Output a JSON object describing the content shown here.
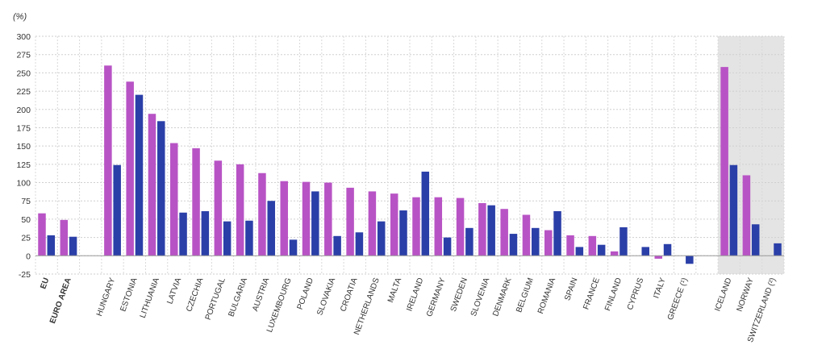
{
  "chart_data": {
    "type": "bar",
    "unit_label": "(%)",
    "ylim": [
      -25,
      300
    ],
    "yticks": [
      -25,
      0,
      25,
      50,
      75,
      100,
      125,
      150,
      175,
      200,
      225,
      250,
      275,
      300
    ],
    "grid": true,
    "legend": "none",
    "bold_categories": [
      "EU",
      "EURO AREA"
    ],
    "shaded_categories": [
      "ICELAND",
      "NORWAY",
      "SWITZERLAND (²)"
    ],
    "colors": {
      "series_1": "#b853c5",
      "series_2": "#2b3fa8",
      "shade": "#e4e4e4"
    },
    "categories": [
      "EU",
      "EURO AREA",
      "",
      "HUNGARY",
      "ESTONIA",
      "LITHUANIA",
      "LATVIA",
      "CZECHIA",
      "PORTUGAL",
      "BULGARIA",
      "AUSTRIA",
      "LUXEMBOURG",
      "POLAND",
      "SLOVAKIA",
      "CROATIA",
      "NETHERLANDS",
      "MALTA",
      "IRELAND",
      "GERMANY",
      "SWEDEN",
      "SLOVENIA",
      "DENMARK",
      "BELGIUM",
      "ROMANIA",
      "SPAIN",
      "FRANCE",
      "FINLAND",
      "CYPRUS",
      "ITALY",
      "GREECE (¹)",
      "",
      "ICELAND",
      "NORWAY",
      "SWITZERLAND (²)"
    ],
    "series": [
      {
        "values": [
          58,
          49,
          null,
          260,
          238,
          194,
          154,
          147,
          130,
          125,
          113,
          102,
          101,
          100,
          93,
          88,
          85,
          80,
          80,
          79,
          72,
          64,
          56,
          35,
          28,
          27,
          6,
          null,
          -4,
          null,
          null,
          258,
          110,
          null
        ]
      },
      {
        "values": [
          28,
          26,
          null,
          124,
          220,
          184,
          59,
          61,
          47,
          48,
          75,
          22,
          88,
          27,
          32,
          47,
          62,
          115,
          25,
          38,
          69,
          30,
          38,
          61,
          12,
          15,
          39,
          12,
          16,
          -11,
          null,
          124,
          43,
          17
        ]
      }
    ]
  }
}
